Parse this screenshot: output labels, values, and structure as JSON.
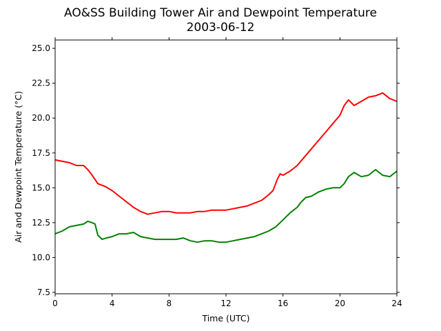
{
  "chart_data": {
    "type": "line",
    "title": "AO&SS Building Tower Air and Dewpoint Temperature",
    "subtitle": "2003-06-12",
    "xlabel": "Time (UTC)",
    "ylabel": "Air and Dewpoint Temperature (°C)",
    "xlim": [
      0,
      24
    ],
    "ylim": [
      7.4,
      25.6
    ],
    "xticks": [
      0,
      4,
      8,
      12,
      16,
      20,
      24
    ],
    "xtick_labels": [
      "0",
      "4",
      "8",
      "12",
      "16",
      "20",
      "24"
    ],
    "yticks": [
      7.5,
      10.0,
      12.5,
      15.0,
      17.5,
      20.0,
      22.5,
      25.0
    ],
    "ytick_labels": [
      "7.5",
      "10.0",
      "12.5",
      "15.0",
      "17.5",
      "20.0",
      "22.5",
      "25.0"
    ],
    "grid": false,
    "series": [
      {
        "color": "#ff0000",
        "x": [
          0,
          0.5,
          1,
          1.5,
          2,
          2.3,
          2.6,
          3,
          3.5,
          4,
          4.5,
          5,
          5.5,
          6,
          6.5,
          7,
          7.5,
          8,
          8.5,
          9,
          9.5,
          10,
          10.5,
          11,
          11.5,
          12,
          12.5,
          13,
          13.5,
          14,
          14.5,
          15,
          15.3,
          15.6,
          15.8,
          16,
          16.5,
          17,
          17.5,
          18,
          18.5,
          19,
          19.5,
          20,
          20.3,
          20.6,
          21,
          21.5,
          22,
          22.5,
          23,
          23.5,
          24
        ],
        "values": [
          17.0,
          16.9,
          16.8,
          16.6,
          16.6,
          16.3,
          15.9,
          15.3,
          15.1,
          14.8,
          14.4,
          14.0,
          13.6,
          13.3,
          13.1,
          13.2,
          13.3,
          13.3,
          13.2,
          13.2,
          13.2,
          13.3,
          13.3,
          13.4,
          13.4,
          13.4,
          13.5,
          13.6,
          13.7,
          13.9,
          14.1,
          14.5,
          14.8,
          15.6,
          16.0,
          15.9,
          16.2,
          16.6,
          17.2,
          17.8,
          18.4,
          19.0,
          19.6,
          20.2,
          20.9,
          21.3,
          20.9,
          21.2,
          21.5,
          21.6,
          21.8,
          21.4,
          21.2
        ]
      },
      {
        "color": "#008000",
        "x": [
          0,
          0.5,
          1,
          1.5,
          2,
          2.3,
          2.6,
          2.8,
          3,
          3.3,
          3.6,
          4,
          4.5,
          5,
          5.5,
          6,
          6.5,
          7,
          7.5,
          8,
          8.5,
          9,
          9.5,
          10,
          10.5,
          11,
          11.5,
          12,
          12.5,
          13,
          13.5,
          14,
          14.5,
          15,
          15.5,
          16,
          16.5,
          17,
          17.3,
          17.6,
          18,
          18.5,
          19,
          19.5,
          20,
          20.3,
          20.6,
          21,
          21.5,
          22,
          22.5,
          23,
          23.5,
          24
        ],
        "values": [
          11.7,
          11.9,
          12.2,
          12.3,
          12.4,
          12.6,
          12.5,
          12.4,
          11.6,
          11.3,
          11.4,
          11.5,
          11.7,
          11.7,
          11.8,
          11.5,
          11.4,
          11.3,
          11.3,
          11.3,
          11.3,
          11.4,
          11.2,
          11.1,
          11.2,
          11.2,
          11.1,
          11.1,
          11.2,
          11.3,
          11.4,
          11.5,
          11.7,
          11.9,
          12.2,
          12.7,
          13.2,
          13.6,
          14.0,
          14.3,
          14.4,
          14.7,
          14.9,
          15.0,
          15.0,
          15.3,
          15.8,
          16.1,
          15.8,
          15.9,
          16.3,
          15.9,
          15.8,
          16.2
        ]
      }
    ]
  }
}
